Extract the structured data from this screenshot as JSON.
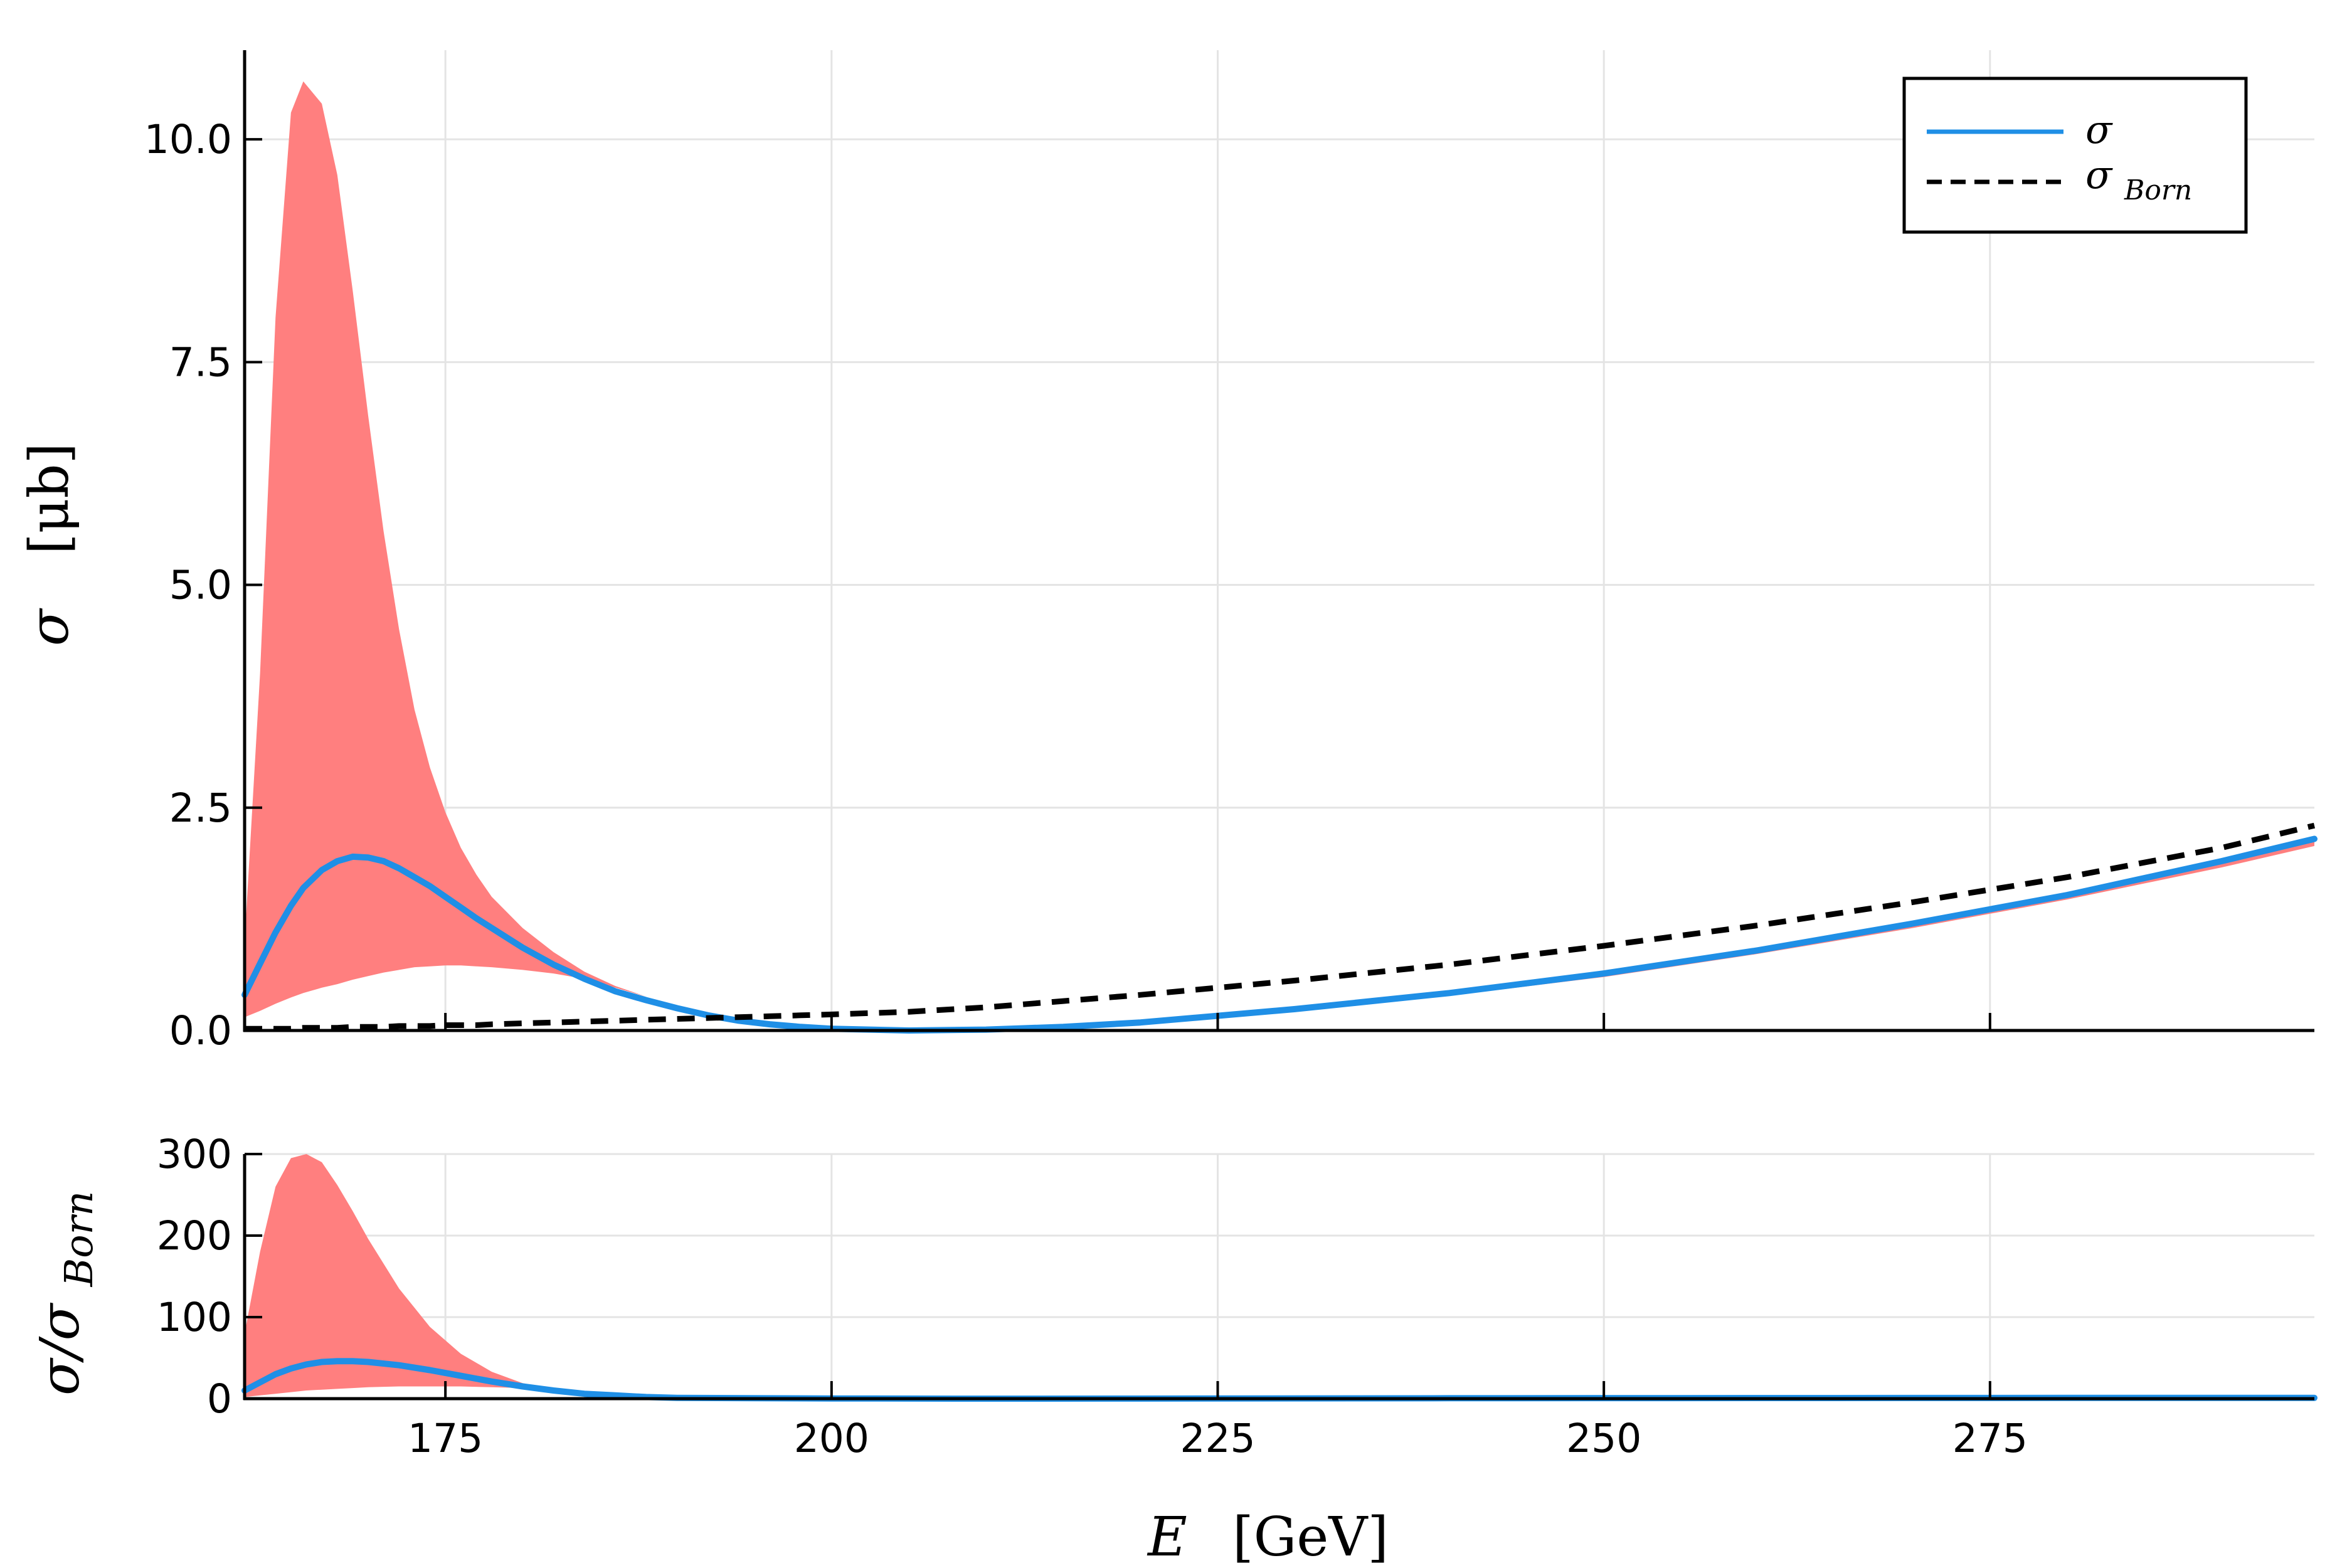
{
  "chart_data": [
    {
      "type": "area",
      "panel": "top",
      "ylabel": "σ  [μb]",
      "xlim": [
        162,
        296
      ],
      "ylim": [
        0,
        11
      ],
      "xticks": [
        175,
        200,
        225,
        250,
        275
      ],
      "yticks": [
        0,
        2.5,
        5,
        7.5,
        10
      ],
      "ytick_labels": [
        "0.0",
        "2.5",
        "5.0",
        "7.5",
        "10.0"
      ],
      "grid": true,
      "legend_position": "top-right",
      "x": [
        162,
        163,
        164,
        165,
        165.8,
        167,
        168,
        169,
        170,
        171,
        172,
        173,
        174,
        175,
        176,
        177,
        178,
        180,
        182,
        184,
        186,
        188,
        190,
        192,
        194,
        196,
        198,
        200,
        205,
        210,
        215,
        220,
        230,
        240,
        250,
        260,
        270,
        280,
        290,
        296
      ],
      "series": [
        {
          "name": "σ",
          "color": "#1f8fe6",
          "style": "solid",
          "values": [
            0.4,
            0.75,
            1.1,
            1.4,
            1.6,
            1.8,
            1.9,
            1.95,
            1.94,
            1.9,
            1.82,
            1.72,
            1.62,
            1.5,
            1.38,
            1.26,
            1.15,
            0.93,
            0.74,
            0.58,
            0.44,
            0.34,
            0.25,
            0.17,
            0.11,
            0.07,
            0.04,
            0.02,
            0.0,
            0.01,
            0.04,
            0.09,
            0.24,
            0.42,
            0.64,
            0.9,
            1.2,
            1.52,
            1.9,
            2.15
          ]
        },
        {
          "name": "σ_Born",
          "color": "#000000",
          "style": "dashed",
          "values": [
            0.02,
            0.02,
            0.02,
            0.02,
            0.03,
            0.03,
            0.03,
            0.04,
            0.04,
            0.04,
            0.05,
            0.05,
            0.05,
            0.06,
            0.06,
            0.06,
            0.07,
            0.08,
            0.09,
            0.1,
            0.11,
            0.12,
            0.13,
            0.14,
            0.15,
            0.16,
            0.17,
            0.18,
            0.21,
            0.26,
            0.33,
            0.4,
            0.56,
            0.74,
            0.95,
            1.18,
            1.44,
            1.72,
            2.05,
            2.3
          ]
        }
      ],
      "band": {
        "color": "#ff7f7f",
        "lower": [
          0.15,
          0.22,
          0.3,
          0.37,
          0.42,
          0.48,
          0.52,
          0.57,
          0.61,
          0.65,
          0.68,
          0.71,
          0.72,
          0.73,
          0.73,
          0.72,
          0.71,
          0.68,
          0.64,
          0.58,
          0.48,
          0.38,
          0.27,
          0.18,
          0.11,
          0.07,
          0.04,
          0.02,
          0.0,
          0.01,
          0.03,
          0.07,
          0.21,
          0.39,
          0.6,
          0.86,
          1.15,
          1.47,
          1.83,
          2.07
        ],
        "upper": [
          1.0,
          4.0,
          8.0,
          10.3,
          10.65,
          10.4,
          9.6,
          8.3,
          6.9,
          5.6,
          4.5,
          3.6,
          2.95,
          2.45,
          2.05,
          1.75,
          1.5,
          1.15,
          0.88,
          0.66,
          0.5,
          0.38,
          0.27,
          0.18,
          0.12,
          0.07,
          0.04,
          0.02,
          0.0,
          0.01,
          0.04,
          0.09,
          0.24,
          0.42,
          0.64,
          0.9,
          1.2,
          1.52,
          1.9,
          2.15
        ]
      }
    },
    {
      "type": "area",
      "panel": "bottom",
      "xlabel": "E  [GeV]",
      "ylabel": "σ/σ_Born",
      "xlim": [
        162,
        296
      ],
      "ylim": [
        0,
        300
      ],
      "xticks": [
        175,
        200,
        225,
        250,
        275
      ],
      "yticks": [
        0,
        100,
        200,
        300
      ],
      "ytick_labels": [
        "0",
        "100",
        "200",
        "300"
      ],
      "grid": true,
      "x": [
        162,
        163,
        164,
        165,
        166,
        167,
        168,
        169,
        170,
        172,
        174,
        176,
        178,
        180,
        182,
        184,
        186,
        188,
        190,
        195,
        200,
        210,
        220,
        240,
        260,
        280,
        296
      ],
      "series": [
        {
          "name": "σ/σ_Born",
          "color": "#1f8fe6",
          "style": "solid",
          "values": [
            10,
            20,
            30,
            37,
            42,
            45,
            46,
            46,
            45,
            41,
            35,
            28,
            21,
            15,
            10,
            6,
            4,
            2,
            1,
            0.5,
            0.2,
            0,
            0.1,
            0.5,
            0.8,
            0.9,
            0.9
          ]
        }
      ],
      "band": {
        "color": "#ff7f7f",
        "lower": [
          2,
          4,
          6,
          8,
          10,
          11,
          12,
          13,
          14,
          15,
          15,
          15,
          14,
          13,
          10,
          6,
          4,
          2,
          1,
          0.5,
          0.2,
          0,
          0.1,
          0.5,
          0.8,
          0.9,
          0.9
        ],
        "upper": [
          80,
          180,
          260,
          295,
          300,
          290,
          262,
          230,
          196,
          135,
          88,
          55,
          33,
          19,
          11,
          6,
          4,
          2,
          1,
          0.5,
          0.2,
          0,
          0.1,
          0.5,
          0.8,
          0.9,
          0.9
        ]
      }
    }
  ],
  "legend": {
    "entry_sigma": "σ",
    "entry_born_main": "σ",
    "entry_born_sub": "Born"
  },
  "text": {
    "xlabel_main": "E",
    "xlabel_unit": "[GeV]",
    "top_ylabel_main": "σ",
    "top_ylabel_unit": "[μb]",
    "bottom_ylabel_main": "σ/σ",
    "bottom_ylabel_sub": "Born"
  }
}
